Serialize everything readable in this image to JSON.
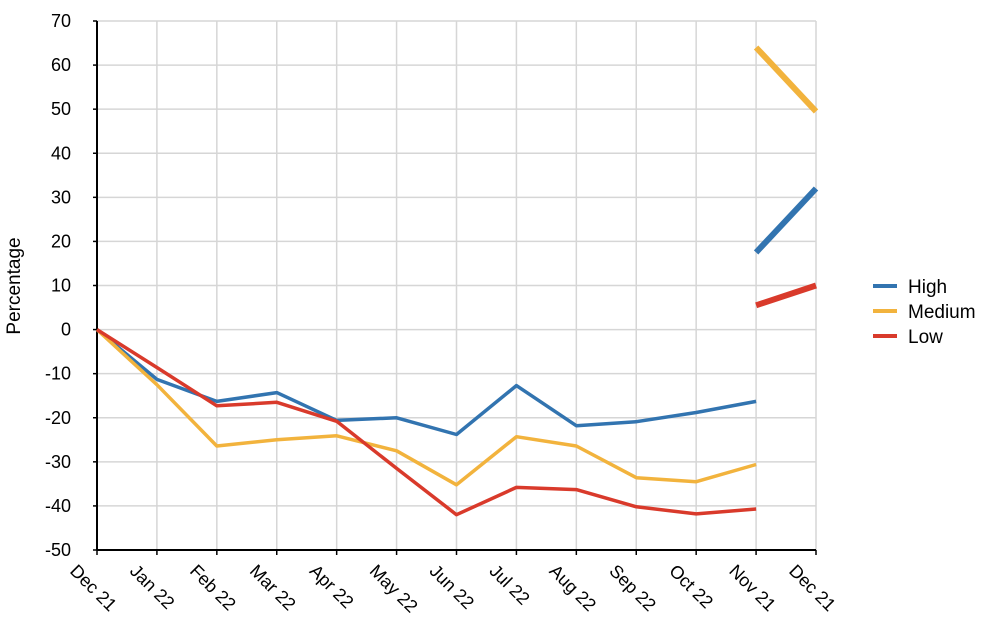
{
  "chart_data": {
    "type": "line",
    "title": "",
    "xlabel": "",
    "ylabel": "Percentage",
    "ylim": [
      -50,
      70
    ],
    "yticks": [
      70,
      60,
      50,
      40,
      30,
      20,
      10,
      0,
      -10,
      -20,
      -30,
      -40,
      -50
    ],
    "grid": true,
    "legend_position": "right",
    "categories": [
      "Dec 21",
      "Jan 22",
      "Feb 22",
      "Mar 22",
      "Apr 22",
      "May 22",
      "Jun 22",
      "Jul 22",
      "Aug 22",
      "Sep 22",
      "Oct 22",
      "Nov 21",
      "Dec 21"
    ],
    "series": [
      {
        "name": "High",
        "color": "#3274b0",
        "values": [
          0,
          -11.3,
          -16.3,
          -14.3,
          -20.6,
          -20.0,
          -23.8,
          -12.7,
          -21.8,
          -20.9,
          -18.8,
          -16.3,
          null
        ],
        "highlight_segment": {
          "values": [
            null,
            null,
            null,
            null,
            null,
            null,
            null,
            null,
            null,
            null,
            null,
            17.5,
            32.0
          ]
        }
      },
      {
        "name": "Medium",
        "color": "#f2b33d",
        "values": [
          0,
          -12.5,
          -26.4,
          -25.0,
          -24.1,
          -27.5,
          -35.2,
          -24.3,
          -26.4,
          -33.6,
          -34.5,
          -30.6,
          null
        ],
        "highlight_segment": {
          "values": [
            null,
            null,
            null,
            null,
            null,
            null,
            null,
            null,
            null,
            null,
            null,
            64.0,
            49.5
          ]
        }
      },
      {
        "name": "Low",
        "color": "#d93a2b",
        "values": [
          0,
          -8.6,
          -17.3,
          -16.5,
          -20.8,
          -31.5,
          -42.0,
          -35.8,
          -36.3,
          -40.2,
          -41.8,
          -40.7,
          null
        ],
        "highlight_segment": {
          "values": [
            null,
            null,
            null,
            null,
            null,
            null,
            null,
            null,
            null,
            null,
            null,
            5.5,
            10.0
          ]
        }
      }
    ]
  }
}
